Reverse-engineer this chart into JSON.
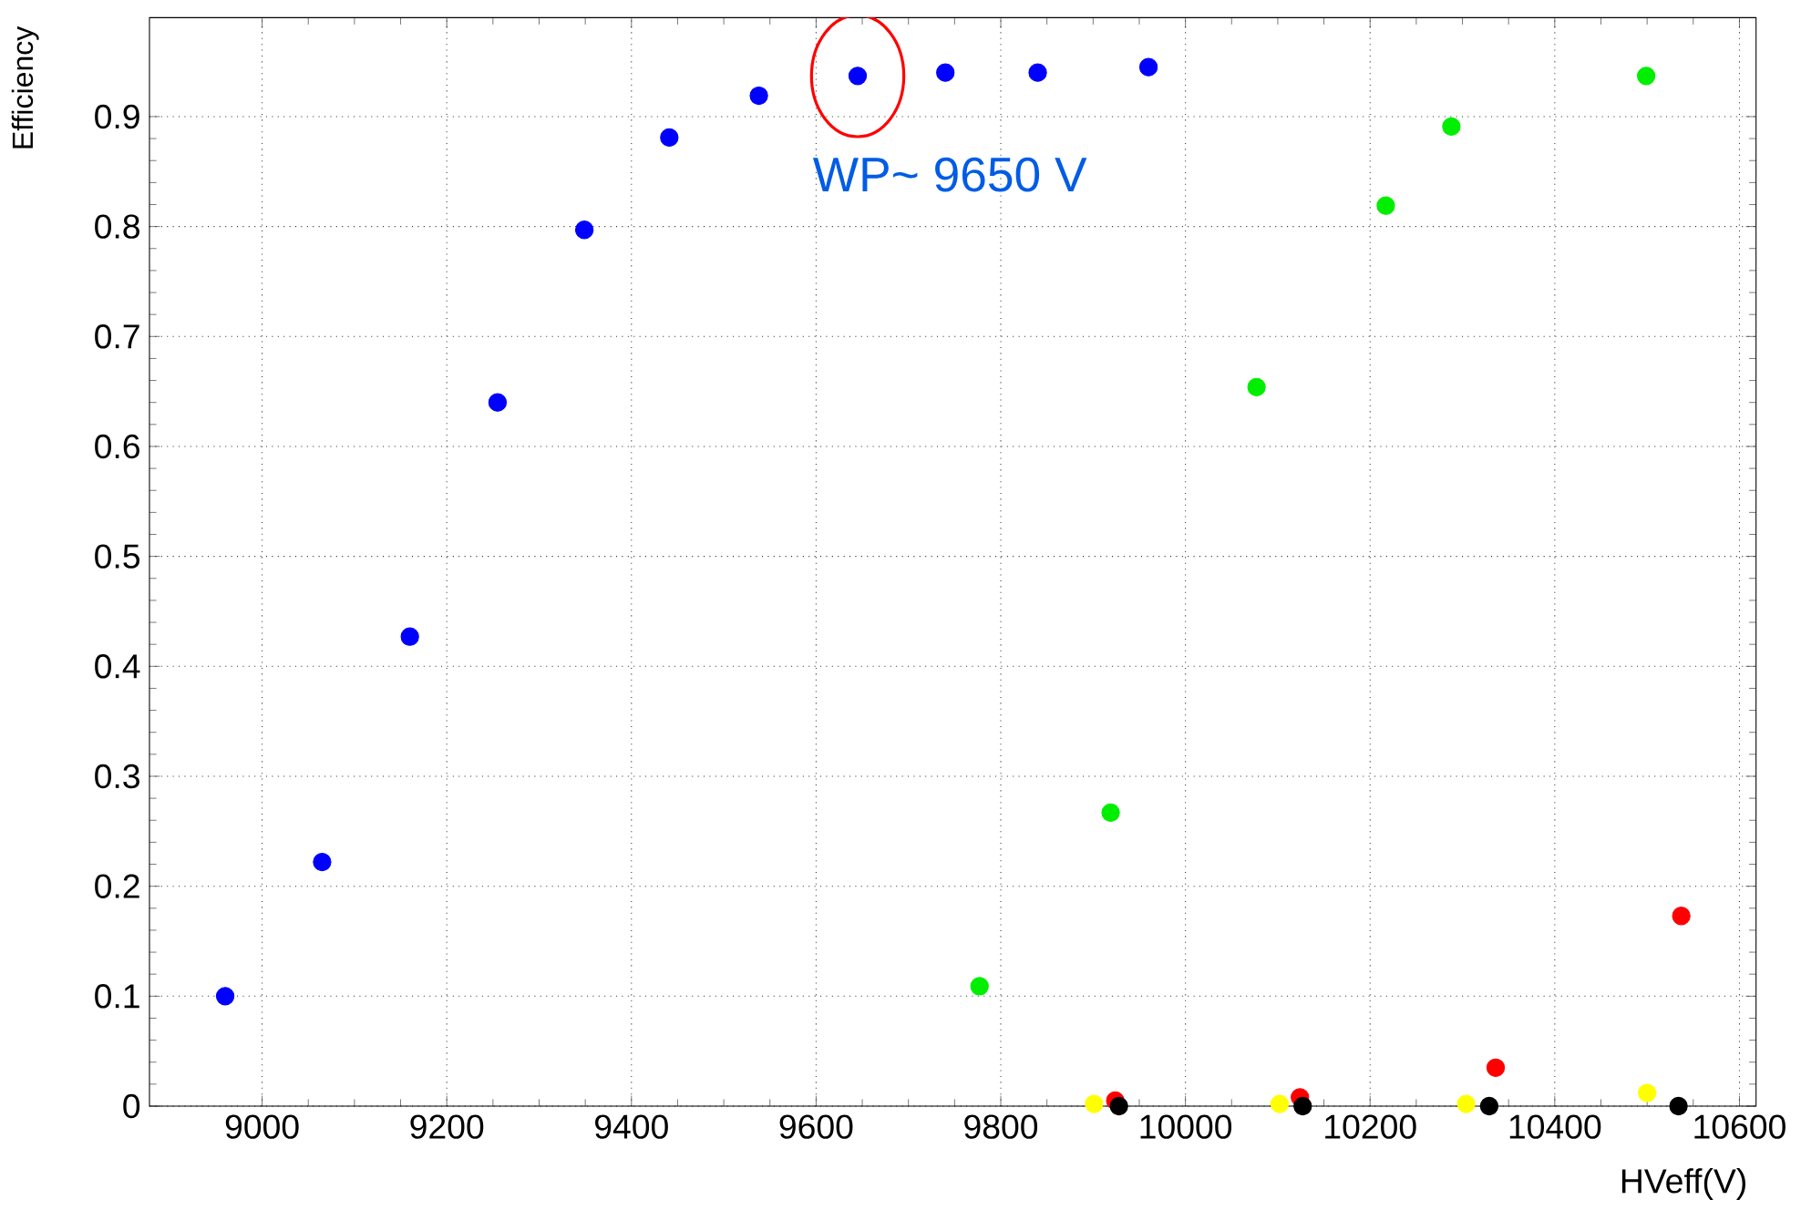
{
  "chart_data": {
    "type": "scatter",
    "xlabel": "HVeff(V)",
    "ylabel": "Efficiency",
    "marker": "circle",
    "grid": true,
    "xlim": [
      8878,
      10618
    ],
    "ylim": [
      0,
      0.99
    ],
    "xticks": [
      9000,
      9200,
      9400,
      9600,
      9800,
      10000,
      10200,
      10400,
      10600
    ],
    "yticks": [
      {
        "value": 0,
        "label": "0"
      },
      0.1,
      0.2,
      0.3,
      0.4,
      0.5,
      0.6,
      0.7,
      0.8,
      0.9
    ],
    "annotations": [
      {
        "text": "WP~ 9650 V",
        "x": 9645,
        "y": 0.937
      }
    ],
    "series": [
      {
        "color": "#0000ff",
        "x": [
          8960,
          9065,
          9160,
          9255,
          9349,
          9441,
          9538,
          9645,
          9740,
          9840,
          9960
        ],
        "values": [
          0.1,
          0.222,
          0.427,
          0.64,
          0.797,
          0.881,
          0.919,
          0.937,
          0.94,
          0.94,
          0.945
        ]
      },
      {
        "color": "#00ee00",
        "x": [
          9777,
          9919,
          10077,
          10217,
          10288,
          10499
        ],
        "values": [
          0.109,
          0.267,
          0.654,
          0.819,
          0.891,
          0.937
        ]
      },
      {
        "color": "#ff0000",
        "x": [
          9924,
          10124,
          10336,
          10537
        ],
        "values": [
          0.005,
          0.008,
          0.035,
          0.173
        ]
      },
      {
        "color": "#ffff00",
        "x": [
          9901,
          10102,
          10304,
          10500
        ],
        "values": [
          0.002,
          0.002,
          0.002,
          0.012
        ]
      },
      {
        "color": "#000000",
        "x": [
          9928,
          10127,
          10329,
          10534
        ],
        "values": [
          0,
          0,
          0,
          0
        ]
      }
    ]
  }
}
